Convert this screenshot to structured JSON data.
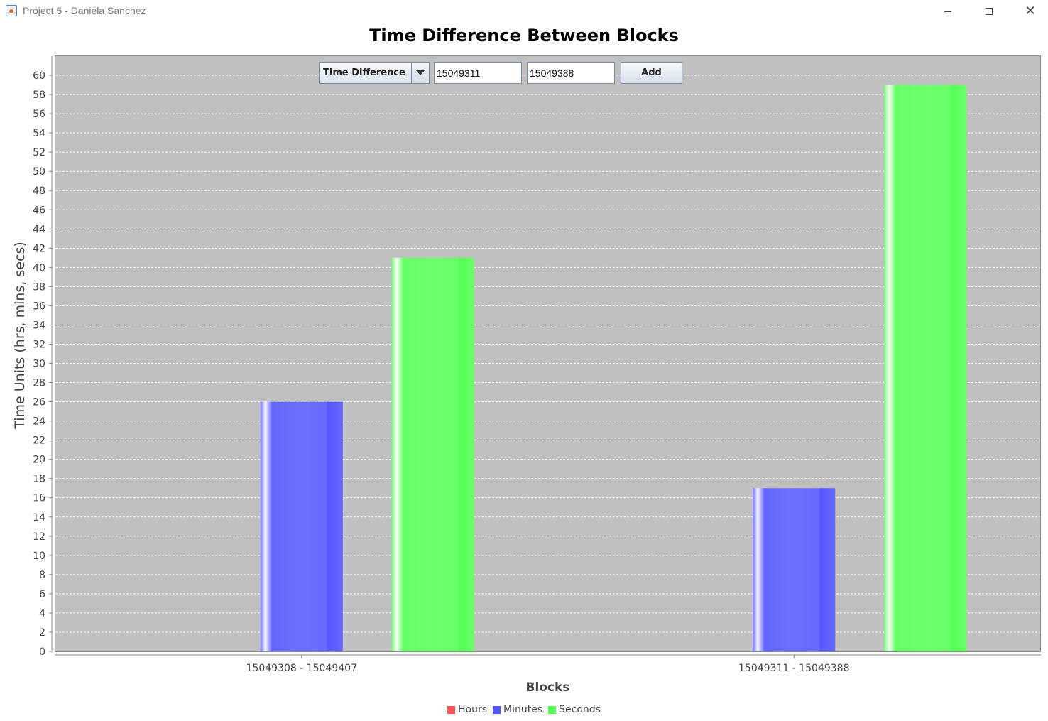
{
  "window": {
    "title": "Project 5 - Daniela Sanchez",
    "minimize_icon": "minimize-icon",
    "maximize_icon": "maximize-icon",
    "close_glyph": "✕"
  },
  "controls": {
    "metric_select": "Time Difference",
    "block_start": "15049311",
    "block_end": "15049388",
    "add_label": "Add"
  },
  "chart_data": {
    "type": "bar",
    "title": "Time Difference Between Blocks",
    "xlabel": "Blocks",
    "ylabel": "Time Units (hrs, mins, secs)",
    "ylim": [
      0,
      62
    ],
    "ytick_step": 2,
    "grid": true,
    "legend_position": "bottom",
    "categories": [
      "15049308 - 15049407",
      "15049311 - 15049388"
    ],
    "series": [
      {
        "name": "Hours",
        "color": "#ff5555",
        "values": [
          0,
          0
        ]
      },
      {
        "name": "Minutes",
        "color": "#5555ff",
        "values": [
          26,
          17
        ]
      },
      {
        "name": "Seconds",
        "color": "#55ff55",
        "values": [
          41,
          59
        ]
      }
    ]
  }
}
